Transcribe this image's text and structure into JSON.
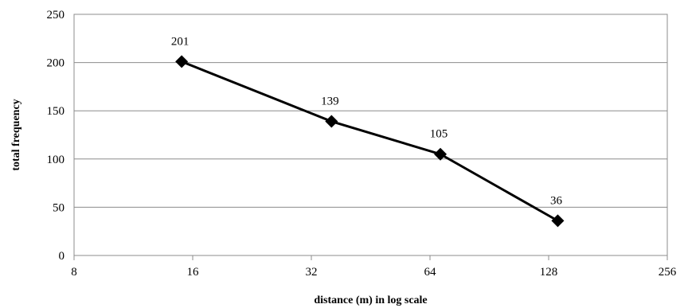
{
  "chart_data": {
    "type": "line",
    "title": "",
    "xlabel": "distance (m) in log scale",
    "ylabel": "total frequency",
    "x_scale": "log2",
    "xlim": [
      8,
      256
    ],
    "ylim": [
      0,
      250
    ],
    "x_ticks": [
      8,
      16,
      32,
      64,
      128,
      256
    ],
    "y_ticks": [
      0,
      50,
      100,
      150,
      200,
      250
    ],
    "grid": "horizontal",
    "legend": "none",
    "series": [
      {
        "marker": "diamond",
        "color": "#000000",
        "points": [
          {
            "x": 15,
            "y": 201,
            "label": "201"
          },
          {
            "x": 36,
            "y": 139,
            "label": "139"
          },
          {
            "x": 68,
            "y": 105,
            "label": "105"
          },
          {
            "x": 135,
            "y": 36,
            "label": "36"
          }
        ]
      }
    ]
  }
}
